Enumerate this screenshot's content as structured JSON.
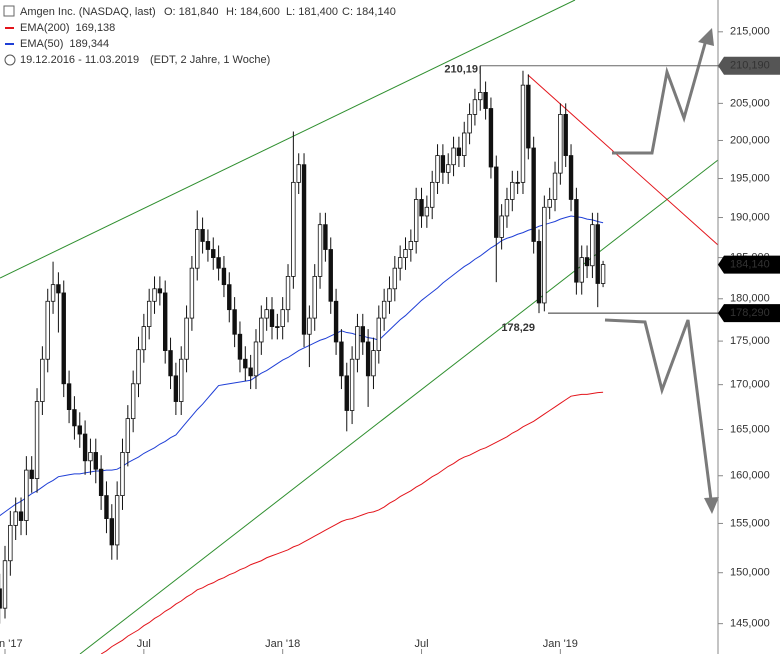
{
  "chart_data": {
    "type": "candlestick",
    "title": "Amgen Inc. (NASDAQ, last)",
    "ohlc_labels": [
      "O: 181,840",
      "H: 184,600",
      "L: 181,400",
      "C: 184,140"
    ],
    "date_range": "19.12.2016 - 11.03.2019",
    "period_note": "(EDT, 2 Jahre, 1 Woche)",
    "candle_color": "#111111",
    "open": [
      150,
      148.4,
      146.5,
      151.2,
      154.8,
      156.2,
      155.3,
      160.6,
      159.7,
      168.1,
      172.9,
      179.7,
      181.7,
      180.7,
      170.1,
      167.2,
      165.4,
      164.5,
      161.6,
      162.5,
      160.7,
      157.9,
      155.5,
      152.8,
      157.9,
      162.5,
      166.2,
      170.1,
      174,
      176.7,
      179.7,
      181.2,
      180.7,
      173.9,
      171,
      168.1,
      172.9,
      177.7,
      183.7,
      188.5,
      187,
      186,
      185,
      183.7,
      181.7,
      178.7,
      175.8,
      172.9,
      171.9,
      171,
      174.9,
      177.7,
      178.7,
      176.7,
      176.7,
      178.7,
      182.7,
      194.5,
      196.8,
      175.8,
      177.7,
      182.7,
      189.1,
      186,
      179.7,
      174.9,
      171,
      167.1,
      172.9,
      176.7,
      174.9,
      171,
      173.9,
      177.7,
      179.7,
      181.2,
      183.7,
      185,
      186,
      187,
      192.3,
      190.2,
      191.3,
      194.5,
      198,
      195.8,
      196.8,
      199,
      198,
      201,
      203.5,
      205.5,
      206.5,
      204.3,
      196.5,
      187.5,
      190.2,
      192.3,
      194.5,
      194.5,
      207.5,
      199,
      187,
      179.5,
      191.3,
      192.3,
      195.7,
      203.5,
      198,
      192.3,
      182,
      185,
      184,
      189.1,
      181.84
    ],
    "high": [
      151.5,
      149.9,
      152.7,
      156.3,
      157.7,
      157.7,
      162.1,
      162.1,
      169.6,
      174.4,
      181.2,
      184.5,
      183.2,
      182.2,
      171.6,
      168.7,
      166.9,
      166,
      164,
      164,
      162.2,
      159.4,
      157,
      159.4,
      164,
      167.7,
      171.6,
      175.5,
      178.2,
      181.2,
      182.7,
      182.7,
      182.2,
      175.4,
      172.5,
      174.4,
      179.2,
      185.2,
      190.9,
      190,
      188.5,
      187.5,
      186.5,
      185.2,
      183.2,
      180.2,
      177.3,
      174.4,
      173.4,
      176.4,
      179.2,
      180.2,
      180.2,
      178.2,
      180.2,
      184.2,
      201.2,
      198.3,
      198.3,
      179.2,
      184.2,
      190.6,
      190.6,
      187.5,
      181.2,
      176.4,
      172.5,
      174.4,
      178.2,
      178.2,
      176.4,
      175.4,
      179.2,
      181.2,
      182.7,
      185.2,
      186.5,
      187.5,
      188.5,
      193.8,
      193.8,
      192.8,
      196,
      199.5,
      199.5,
      198.3,
      200.5,
      200.5,
      202.5,
      205,
      207,
      210.19,
      208,
      205.8,
      198,
      191.7,
      193.8,
      196,
      196,
      209.5,
      209,
      200.5,
      188.5,
      192.8,
      193.8,
      197.2,
      205,
      205,
      199.5,
      193.8,
      186.5,
      186.5,
      190.6,
      190.6,
      184.6
    ],
    "low": [
      145.5,
      145,
      145.5,
      149.7,
      153.3,
      153.8,
      153.8,
      158.2,
      158.2,
      166.6,
      171.4,
      178.2,
      176,
      168.6,
      165.7,
      163.9,
      163,
      160.1,
      160.1,
      159.2,
      156.4,
      154,
      151.3,
      151.3,
      156.4,
      161,
      164.7,
      168.6,
      172.5,
      175.2,
      178.2,
      179.2,
      172.4,
      169.5,
      166.6,
      166.6,
      171.4,
      176.2,
      182.2,
      185.5,
      184.5,
      183.5,
      182.2,
      180.2,
      177.2,
      174.3,
      171.4,
      170.4,
      169.5,
      169.5,
      173.4,
      176.2,
      175.2,
      175.2,
      175.2,
      177.2,
      181.2,
      193,
      174.3,
      172,
      176.2,
      181.2,
      184.5,
      178.2,
      173.4,
      169.5,
      164.8,
      165.6,
      171.4,
      173.4,
      167.5,
      169.5,
      172.4,
      176.2,
      178.2,
      179.7,
      182.2,
      183.5,
      184.5,
      185.5,
      188.7,
      188.7,
      189.8,
      193,
      194.3,
      194.3,
      195.3,
      196.5,
      196.5,
      199.5,
      202,
      204,
      202.8,
      195,
      182,
      186,
      188.7,
      190.8,
      193,
      193,
      197.5,
      185.5,
      178.29,
      178.5,
      189.8,
      190.8,
      194.2,
      196.5,
      190.8,
      180.5,
      180.5,
      182.5,
      182.5,
      179,
      181.4
    ],
    "close": [
      148.4,
      146.5,
      151.2,
      154.8,
      156.2,
      155.3,
      160.6,
      159.7,
      168.1,
      172.9,
      179.7,
      181.7,
      180.7,
      170.1,
      167.2,
      165.4,
      164.5,
      161.6,
      162.5,
      160.7,
      157.9,
      155.5,
      152.8,
      157.9,
      162.5,
      166.2,
      170.1,
      174,
      176.7,
      179.7,
      181.2,
      180.7,
      173.9,
      171,
      168.1,
      172.9,
      177.7,
      183.7,
      188.5,
      187,
      186,
      185,
      183.7,
      181.7,
      178.7,
      175.8,
      172.9,
      171.9,
      171,
      174.9,
      177.7,
      178.7,
      176.7,
      176.7,
      178.7,
      182.7,
      194.5,
      196.8,
      175.8,
      177.7,
      182.7,
      189.1,
      186,
      179.7,
      174.9,
      171,
      167.1,
      172.9,
      176.7,
      174.9,
      171,
      173.9,
      177.7,
      179.7,
      181.2,
      183.7,
      185,
      186,
      187,
      192.3,
      190.2,
      191.3,
      194.5,
      198,
      195.8,
      196.8,
      199,
      198,
      201,
      203.5,
      205.5,
      206.5,
      204.3,
      196.5,
      187.5,
      190.2,
      192.3,
      194.5,
      194.5,
      207.5,
      199,
      187,
      179.5,
      191.3,
      192.3,
      195.7,
      203.5,
      198,
      192.3,
      182,
      185,
      184,
      189.1,
      181.84,
      184.14
    ],
    "series": [
      {
        "name": "EMA(200)",
        "color": "#e3141b",
        "last_label": "169,138",
        "values": [
          null,
          null,
          null,
          null,
          null,
          null,
          null,
          null,
          null,
          null,
          null,
          null,
          null,
          null,
          null,
          null,
          null,
          null,
          null,
          null,
          142.1,
          142.4,
          142.8,
          143.1,
          143.4,
          143.8,
          144.1,
          144.4,
          144.8,
          145.1,
          145.5,
          145.8,
          146.2,
          146.5,
          146.9,
          147.2,
          147.6,
          147.9,
          148.3,
          148.5,
          148.8,
          149,
          149.3,
          149.5,
          149.8,
          150,
          150.3,
          150.5,
          150.8,
          151,
          151.2,
          151.5,
          151.7,
          151.9,
          152.1,
          152.3,
          152.6,
          152.8,
          153.1,
          153.4,
          153.7,
          154,
          154.3,
          154.6,
          154.9,
          155.2,
          155.4,
          155.5,
          155.7,
          155.9,
          156.1,
          156.2,
          156.4,
          156.7,
          157.1,
          157.4,
          157.8,
          158.1,
          158.4,
          158.8,
          159.1,
          159.5,
          159.9,
          160.2,
          160.6,
          161,
          161.3,
          161.7,
          162,
          162.2,
          162.5,
          162.8,
          163,
          163.3,
          163.6,
          163.9,
          164.2,
          164.6,
          164.9,
          165.3,
          165.6,
          165.9,
          166.3,
          166.7,
          167.1,
          167.5,
          167.9,
          168.3,
          168.7,
          168.8,
          168.9,
          168.9,
          169,
          169.1,
          169.138
        ]
      },
      {
        "name": "EMA(50)",
        "color": "#1f3fd6",
        "last_label": "189,344",
        "values": [
          155.5,
          155.8,
          156.2,
          156.6,
          157,
          157.3,
          157.7,
          158.1,
          158.4,
          158.8,
          159.2,
          159.5,
          159.9,
          160,
          160.1,
          160.2,
          160.2,
          160.3,
          160.4,
          160.5,
          160.5,
          160.6,
          160.6,
          160.7,
          161,
          161.4,
          161.7,
          162,
          162.4,
          162.7,
          163,
          163.4,
          163.7,
          164.1,
          164.4,
          165.1,
          165.8,
          166.5,
          167.2,
          167.8,
          168.5,
          169.2,
          169.9,
          170,
          170.1,
          170.2,
          170.3,
          170.4,
          170.5,
          170.9,
          171.3,
          171.6,
          172,
          172.4,
          172.8,
          173.1,
          173.5,
          173.9,
          174.2,
          174.5,
          174.8,
          175.1,
          175.3,
          175.6,
          175.9,
          176.2,
          176,
          175.9,
          175.7,
          175.6,
          175.4,
          175.3,
          175.1,
          175.7,
          176.3,
          176.9,
          177.5,
          178,
          178.6,
          179.2,
          179.8,
          180.3,
          180.8,
          181.3,
          181.9,
          182.4,
          182.9,
          183.4,
          183.9,
          184.3,
          184.8,
          185.2,
          185.7,
          186.2,
          186.6,
          187.1,
          187.4,
          187.6,
          187.9,
          188.1,
          188.4,
          188.6,
          188.9,
          189.1,
          189.3,
          189.5,
          189.8,
          190,
          190.2,
          190.1,
          190,
          189.8,
          189.7,
          189.5,
          189.344
        ]
      }
    ],
    "log_y": true,
    "ylim": [
      142.1,
      219.6
    ],
    "yticks": [
      {
        "value": 145,
        "label": "145,000"
      },
      {
        "value": 150,
        "label": "150,000"
      },
      {
        "value": 155,
        "label": "155,000"
      },
      {
        "value": 160,
        "label": "160,000"
      },
      {
        "value": 165,
        "label": "165,000"
      },
      {
        "value": 170,
        "label": "170,000"
      },
      {
        "value": 175,
        "label": "175,000"
      },
      {
        "value": 180,
        "label": "180,000"
      },
      {
        "value": 185,
        "label": "185,000"
      },
      {
        "value": 190,
        "label": "190,000"
      },
      {
        "value": 195,
        "label": "195,000"
      },
      {
        "value": 200,
        "label": "200,000"
      },
      {
        "value": 205,
        "label": "205,000"
      },
      {
        "value": 210,
        "label": "210,000"
      },
      {
        "value": 215,
        "label": "215,000"
      }
    ],
    "xticks": [
      {
        "value": 2,
        "label": "Jan '17"
      },
      {
        "value": 28,
        "label": "Jul"
      },
      {
        "value": 54,
        "label": "Jan '18"
      },
      {
        "value": 80,
        "label": "Jul"
      },
      {
        "value": 106,
        "label": "Jan '19"
      }
    ],
    "annotations": [
      {
        "value": 210.19,
        "label": "210,19"
      },
      {
        "value": 178.29,
        "label": "178,29"
      }
    ],
    "price_markers": [
      {
        "value": 210.19,
        "label": "210,190",
        "color": "#555555"
      },
      {
        "value": 184.14,
        "label": "184,140",
        "color": "#000000"
      },
      {
        "value": 178.29,
        "label": "178,290",
        "color": "#000000"
      }
    ]
  }
}
